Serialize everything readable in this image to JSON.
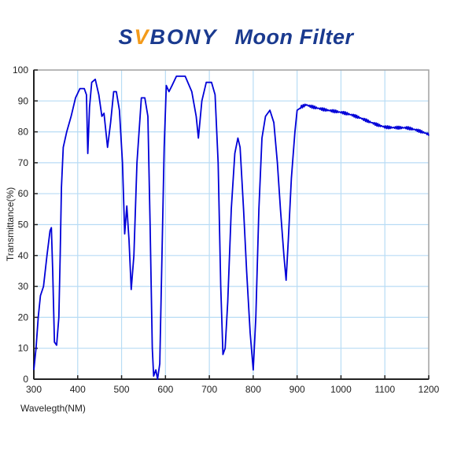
{
  "header": {
    "brand_pre": "S",
    "brand_v": "V",
    "brand_post": "BONY",
    "subtitle": "Moon Filter"
  },
  "colors": {
    "brand_blue": "#1a3a8f",
    "brand_orange": "#f39a1a",
    "curve": "#0000d8",
    "grid": "#b8dcf5",
    "axis": "#222222"
  },
  "chart_data": {
    "type": "line",
    "title": "SVBONY Moon Filter",
    "xlabel": "Wavelegth(NM)",
    "ylabel": "Transmittance(%)",
    "xlim": [
      300,
      1200
    ],
    "ylim": [
      0,
      100
    ],
    "x_ticks": [
      300,
      400,
      500,
      600,
      700,
      800,
      900,
      1000,
      1100,
      1200
    ],
    "y_ticks": [
      0,
      10,
      20,
      30,
      40,
      50,
      60,
      70,
      80,
      90,
      100
    ],
    "grid": true,
    "legend": null,
    "series": [
      {
        "name": "Transmittance",
        "x": [
          300,
          305,
          310,
          315,
          322,
          330,
          337,
          340,
          343,
          347,
          352,
          357,
          360,
          363,
          367,
          375,
          385,
          395,
          405,
          415,
          420,
          423,
          427,
          432,
          440,
          448,
          455,
          460,
          468,
          475,
          482,
          488,
          495,
          502,
          507,
          512,
          517,
          522,
          528,
          535,
          545,
          553,
          560,
          565,
          570,
          573,
          578,
          582,
          587,
          592,
          597,
          602,
          608,
          615,
          625,
          645,
          660,
          670,
          675,
          683,
          693,
          705,
          713,
          720,
          726,
          731,
          736,
          742,
          750,
          758,
          765,
          770,
          778,
          785,
          793,
          800,
          806,
          813,
          820,
          828,
          838,
          847,
          855,
          862,
          870,
          875,
          880,
          887,
          895,
          900,
          908,
          920,
          950,
          1000,
          1050,
          1100,
          1150,
          1200
        ],
        "values": [
          3,
          10,
          20,
          27,
          30,
          40,
          48,
          49,
          35,
          12,
          11,
          20,
          40,
          62,
          75,
          80,
          85,
          91,
          94,
          94,
          92,
          73,
          88,
          96,
          97,
          92,
          85,
          86,
          75,
          83,
          93,
          93,
          87,
          70,
          47,
          56,
          45,
          29,
          40,
          70,
          91,
          91,
          85,
          50,
          10,
          1,
          3,
          0,
          5,
          40,
          75,
          95,
          93,
          95,
          98,
          98,
          93,
          85,
          78,
          90,
          96,
          96,
          92,
          70,
          30,
          8,
          10,
          25,
          55,
          73,
          78,
          75,
          55,
          35,
          15,
          3,
          20,
          55,
          78,
          85,
          87,
          83,
          70,
          55,
          40,
          32,
          45,
          65,
          80,
          87,
          88,
          89,
          88,
          86,
          84,
          82,
          81,
          79
        ]
      }
    ]
  }
}
